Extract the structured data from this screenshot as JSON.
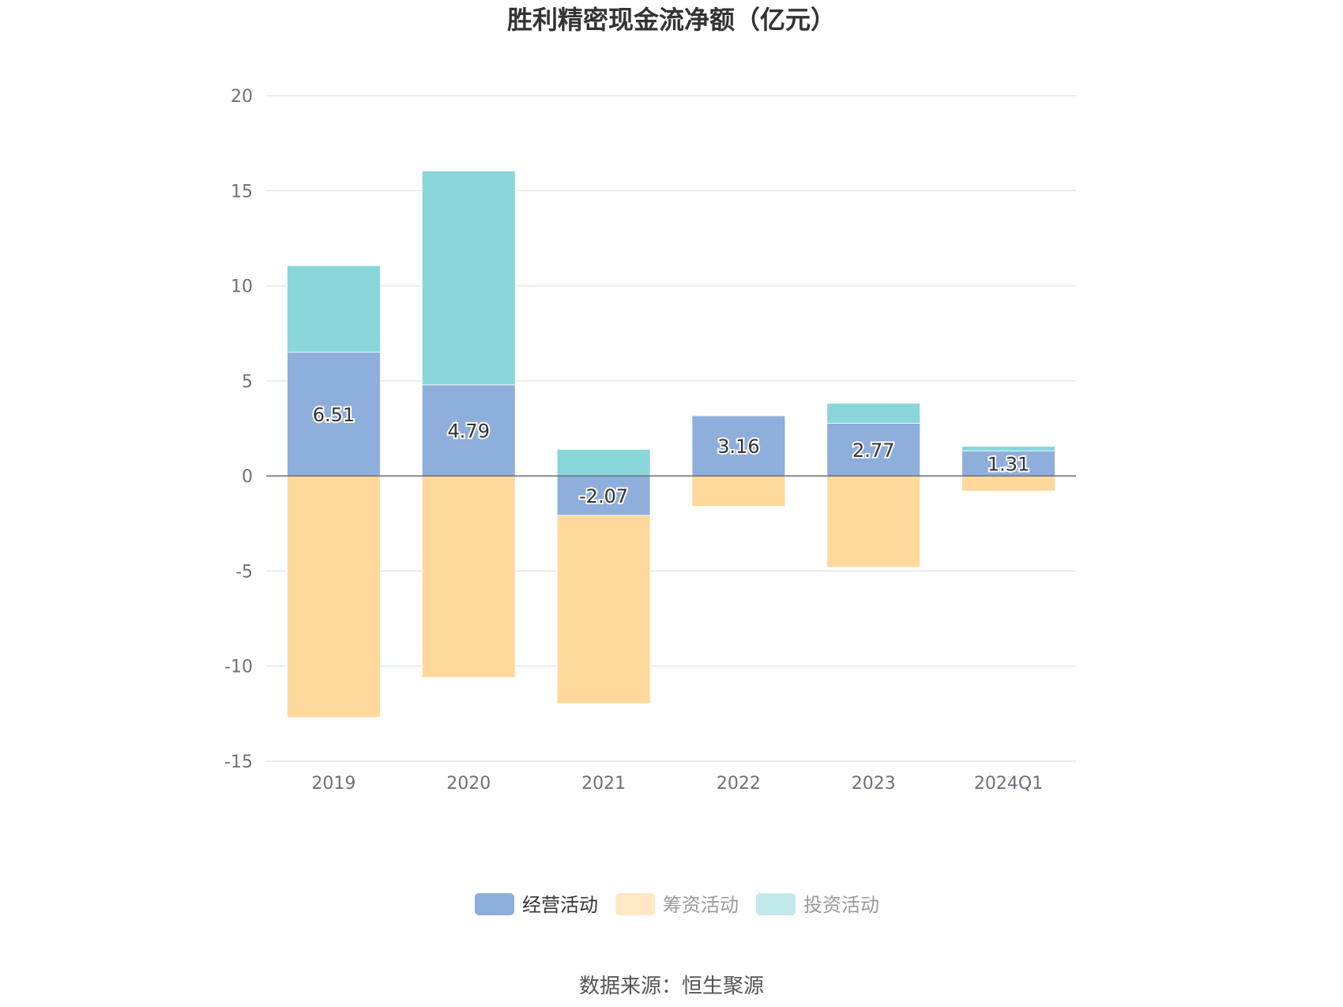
{
  "chart_data": {
    "type": "bar",
    "stacked": true,
    "title": "胜利精密现金流净额（亿元）",
    "categories": [
      "2019",
      "2020",
      "2021",
      "2022",
      "2023",
      "2024Q1"
    ],
    "series": [
      {
        "name": "经营活动",
        "color": "#8eaedb",
        "values": [
          6.51,
          4.79,
          -2.07,
          3.16,
          2.77,
          1.31
        ]
      },
      {
        "name": "筹资活动",
        "color": "#ffd89b",
        "values": [
          -12.7,
          -10.6,
          -9.9,
          -1.6,
          -4.8,
          -0.8
        ]
      },
      {
        "name": "投资活动",
        "color": "#88d6da",
        "values": [
          4.55,
          11.25,
          1.4,
          0.04,
          1.05,
          0.25
        ]
      }
    ],
    "data_labels_series": "经营活动",
    "data_labels": [
      "6.51",
      "4.79",
      "-2.07",
      "3.16",
      "2.77",
      "1.31"
    ],
    "yticks": [
      "20",
      "15",
      "10",
      "5",
      "0",
      "-5",
      "-10",
      "-15"
    ],
    "ylim": [
      -15,
      20
    ],
    "grid": true,
    "legend_position": "bottom",
    "legend_inactive_color": "#999999",
    "legend_active_color": "#333333",
    "legend_inactive_swatches": [
      "#ffe8c4",
      "#c2eaec"
    ],
    "source": "数据来源：恒生聚源"
  }
}
